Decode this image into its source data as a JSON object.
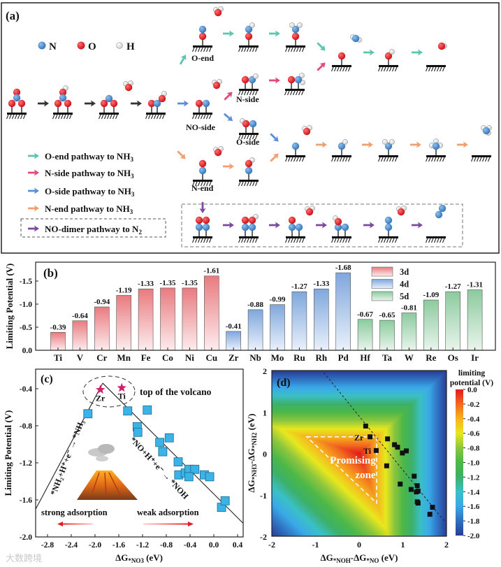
{
  "panel_a": {
    "label": "(a)",
    "atom_legend": [
      {
        "symbol": "N",
        "color": "#3f86c8"
      },
      {
        "symbol": "O",
        "color": "#e0141e"
      },
      {
        "symbol": "H",
        "color": "#f2f2f2"
      }
    ],
    "pathway_labels": {
      "o_end": "O-end",
      "n_side": "N-side",
      "no_side": "NO-side",
      "o_side": "O-side",
      "n_end": "N-end"
    },
    "legend": [
      {
        "text": "O-end pathway to NH",
        "sub": "3",
        "color": "#5cc5b0"
      },
      {
        "text": "N-side pathway to NH",
        "sub": "3",
        "color": "#e24a7e"
      },
      {
        "text": "O-side pathway to NH",
        "sub": "3",
        "color": "#5a8fd6"
      },
      {
        "text": "N-end pathway to NH",
        "sub": "3",
        "color": "#f0a070"
      },
      {
        "text": "NO-dimer pathway to N",
        "sub": "2",
        "color": "#7b4aa0"
      }
    ]
  },
  "chart_data": [
    {
      "panel": "(b)",
      "type": "bar",
      "ylabel": "Limiting Potential (V)",
      "ylim": [
        0,
        -1.9
      ],
      "yticks": [
        "0.0",
        "-0.5",
        "-1.0",
        "-1.5"
      ],
      "categories": [
        "Ti",
        "V",
        "Cr",
        "Mn",
        "Fe",
        "Co",
        "Ni",
        "Cu",
        "Zr",
        "Nb",
        "Mo",
        "Ru",
        "Rh",
        "Pd",
        "Hf",
        "Ta",
        "W",
        "Re",
        "Os",
        "Ir"
      ],
      "values": [
        -0.39,
        -0.64,
        -0.94,
        -1.19,
        -1.33,
        -1.35,
        -1.35,
        -1.61,
        -0.41,
        -0.88,
        -0.99,
        -1.27,
        -1.33,
        -1.68,
        -0.67,
        -0.65,
        -0.81,
        -1.09,
        -1.27,
        -1.31
      ],
      "value_labels": [
        "-0.39",
        "-0.64",
        "-0.94",
        "-1.19",
        "-1.33",
        "-1.35",
        "-1.35",
        "-1.61",
        "-0.41",
        "-0.88",
        "-0.99",
        "-1.27",
        "-1.33",
        "-1.68",
        "-0.67",
        "-0.65",
        "-0.81",
        "-1.09",
        "-1.27",
        "-1.31"
      ],
      "groups": [
        "3d",
        "3d",
        "3d",
        "3d",
        "3d",
        "3d",
        "3d",
        "3d",
        "4d",
        "4d",
        "4d",
        "4d",
        "4d",
        "4d",
        "5d",
        "5d",
        "5d",
        "5d",
        "5d",
        "5d"
      ],
      "legend": [
        {
          "name": "3d",
          "color": "#e87b7f",
          "light": "#fdecee"
        },
        {
          "name": "4d",
          "color": "#7fa7dc",
          "light": "#eaf1fb"
        },
        {
          "name": "5d",
          "color": "#8cca9e",
          "light": "#e9f5ec"
        }
      ],
      "legend_position": "top-right"
    },
    {
      "panel": "(c)",
      "type": "scatter",
      "xlabel": {
        "main": "ΔG",
        "sub": "*NO3",
        "unit": " (eV)"
      },
      "ylabel": "Limiting Potential (V)",
      "xlim": [
        -3.0,
        0.5
      ],
      "ylim": [
        -2.0,
        -0.2
      ],
      "xticks": [
        -2.8,
        -2.4,
        -2.0,
        -1.6,
        -1.2,
        -0.8,
        -0.4,
        0.0,
        0.4
      ],
      "xtick_labels": [
        "-2.8",
        "-2.4",
        "-2.0",
        "-1.6",
        "-1.2",
        "-0.8",
        "-0.4",
        "0.0",
        "0.4"
      ],
      "yticks": [
        -0.4,
        -0.8,
        -1.2,
        -1.6,
        -2.0
      ],
      "ytick_labels": [
        "-0.4",
        "-0.8",
        "-1.2",
        "-1.6",
        "-2.0"
      ],
      "points": [
        [
          -2.12,
          -0.67
        ],
        [
          -1.45,
          -0.64
        ],
        [
          -1.12,
          -0.63
        ],
        [
          -1.29,
          -0.81
        ],
        [
          -1.28,
          -0.87
        ],
        [
          -0.91,
          -0.98
        ],
        [
          -0.75,
          -0.93
        ],
        [
          -0.86,
          -1.08
        ],
        [
          -0.6,
          -1.19
        ],
        [
          -0.59,
          -1.33
        ],
        [
          -0.48,
          -1.31
        ],
        [
          -0.42,
          -1.27
        ],
        [
          -0.32,
          -1.27
        ],
        [
          -0.42,
          -1.35
        ],
        [
          -0.16,
          -1.33
        ],
        [
          -0.07,
          -1.35
        ],
        [
          0.13,
          -1.68
        ],
        [
          0.19,
          -1.61
        ]
      ],
      "point_color": "#3bb3e6",
      "stars": [
        {
          "label": "Zr",
          "x": -1.91,
          "y": -0.41
        },
        {
          "label": "Ti",
          "x": -1.55,
          "y": -0.39
        }
      ],
      "star_color": "#d0206a",
      "fit_lines": [
        [
          [
            -3.0,
            -1.7
          ],
          [
            -1.87,
            -0.34
          ]
        ],
        [
          [
            -1.87,
            -0.34
          ],
          [
            0.49,
            -1.85
          ]
        ]
      ],
      "annotations": {
        "top": "top of the volcano",
        "left_step": "*NH₂+H⁺+e⁻ → *NH₃",
        "right_step": "*NO+H⁺+e⁻ → *NOH",
        "strong": "strong adsorption",
        "weak": "weak adsorption"
      }
    },
    {
      "panel": "(d)",
      "type": "heatmap",
      "xlabel": {
        "a": "ΔG",
        "a_sub": "*NOH",
        "b": "-ΔG",
        "b_sub": "*NO",
        "unit": " (eV)"
      },
      "ylabel": {
        "a": "ΔG",
        "a_sub": "*NH3",
        "b": "-ΔG",
        "b_sub": "*NH2",
        "unit": " (eV)"
      },
      "xlim": [
        -2,
        2
      ],
      "ylim": [
        -2,
        2
      ],
      "xticks": [
        -2,
        -1,
        0,
        1,
        2
      ],
      "tick_labels": [
        "-2",
        "-1",
        "0",
        "1",
        "2"
      ],
      "yticks": [
        -2,
        -1,
        0,
        1,
        2
      ],
      "colorbar": {
        "title1": "limiting",
        "title2": "potential (V)",
        "ticks": [
          "0.0",
          "-0.2",
          "-0.4",
          "-0.6",
          "-0.8",
          "-1.0",
          "-1.2",
          "-1.4",
          "-1.6",
          "-1.8",
          "-2.0"
        ],
        "stops": [
          "#e31a1c",
          "#f26a1f",
          "#f7b21e",
          "#e8e81e",
          "#8cc63f",
          "#4cb848",
          "#3db06a",
          "#3ac0c8",
          "#3aa8e8",
          "#2f6fc0",
          "#283c94"
        ]
      },
      "points": [
        [
          0.15,
          0.66
        ],
        [
          0.25,
          0.4
        ],
        [
          0.39,
          0.07
        ],
        [
          0.65,
          0.35
        ],
        [
          0.81,
          0.21
        ],
        [
          0.88,
          0.15
        ],
        [
          0.99,
          0.01
        ],
        [
          1.08,
          0.06
        ],
        [
          0.63,
          -0.3
        ],
        [
          0.94,
          -0.74
        ],
        [
          1.26,
          -0.55
        ],
        [
          1.19,
          -0.87
        ],
        [
          1.33,
          -0.78
        ],
        [
          1.31,
          -0.93
        ],
        [
          1.35,
          -0.91
        ],
        [
          1.33,
          -1.17
        ],
        [
          1.35,
          -1.2
        ],
        [
          1.68,
          -1.3
        ],
        [
          1.62,
          -1.47
        ]
      ],
      "point_labels": {
        "zr": "Zr",
        "ti": "Ti"
      },
      "zone_label1": "Promising",
      "zone_label2": "zone",
      "zone_triangle": [
        [
          -1.2,
          0.4
        ],
        [
          0.4,
          0.4
        ],
        [
          0.4,
          -1.2
        ]
      ],
      "dashed_line": [
        [
          -0.81,
          1.95
        ],
        [
          1.97,
          -1.66
        ]
      ]
    }
  ],
  "watermark": "大数跨境"
}
